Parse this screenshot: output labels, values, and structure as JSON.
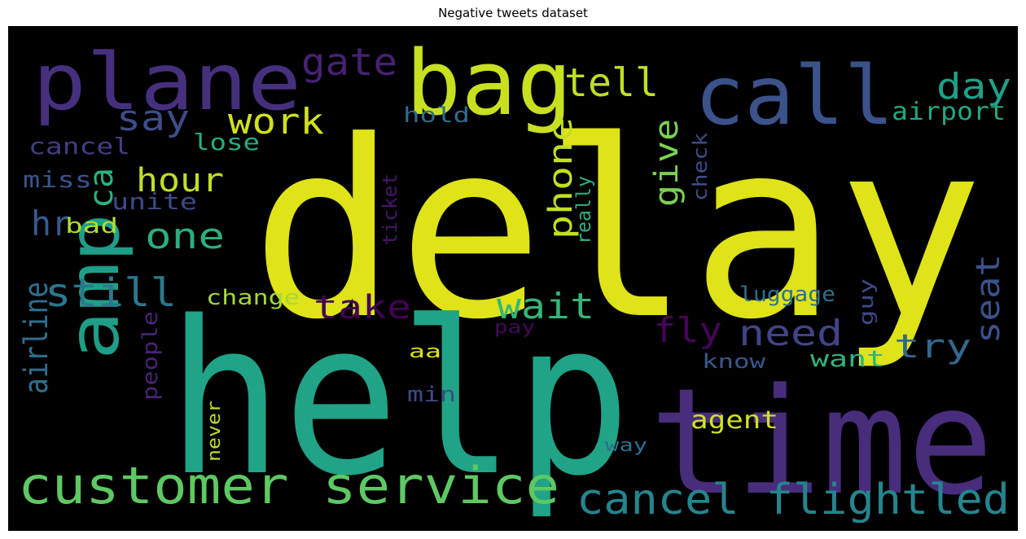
{
  "title": "Negative tweets dataset",
  "words": [
    {
      "text": "delay",
      "color": "#dfe318"
    },
    {
      "text": "help",
      "color": "#20a386"
    },
    {
      "text": "time",
      "color": "#472d7b"
    },
    {
      "text": "plane",
      "color": "#46307e"
    },
    {
      "text": "bag",
      "color": "#c8e020"
    },
    {
      "text": "call",
      "color": "#3b528b"
    },
    {
      "text": "amp",
      "color": "#1f9e89"
    },
    {
      "text": "customer service",
      "color": "#5ec962"
    },
    {
      "text": "cancel flightled",
      "color": "#25858e"
    },
    {
      "text": "still",
      "color": "#2a788e"
    },
    {
      "text": "gate",
      "color": "#482173"
    },
    {
      "text": "tell",
      "color": "#c0df25"
    },
    {
      "text": "day",
      "color": "#1fa088"
    },
    {
      "text": "work",
      "color": "#d0e11c"
    },
    {
      "text": "say",
      "color": "#3e4c8a"
    },
    {
      "text": "hour",
      "color": "#bddf26"
    },
    {
      "text": "one",
      "color": "#29af7f"
    },
    {
      "text": "hr",
      "color": "#365c8d"
    },
    {
      "text": "ca",
      "color": "#2db27d"
    },
    {
      "text": "airline",
      "color": "#2e6f8e"
    },
    {
      "text": "take",
      "color": "#440154"
    },
    {
      "text": "wait",
      "color": "#35b779"
    },
    {
      "text": "need",
      "color": "#414487"
    },
    {
      "text": "fly",
      "color": "#450559"
    },
    {
      "text": "seat",
      "color": "#3b528b"
    },
    {
      "text": "try",
      "color": "#31688e"
    },
    {
      "text": "give",
      "color": "#7ad151"
    },
    {
      "text": "phone",
      "color": "#c2df23"
    },
    {
      "text": "airport",
      "color": "#22a884"
    },
    {
      "text": "hold",
      "color": "#2f6c8e"
    },
    {
      "text": "cancel",
      "color": "#433e85"
    },
    {
      "text": "lose",
      "color": "#26ad81"
    },
    {
      "text": "miss",
      "color": "#3a548c"
    },
    {
      "text": "unite",
      "color": "#3e4a89"
    },
    {
      "text": "bad",
      "color": "#b5de2b"
    },
    {
      "text": "really",
      "color": "#2ab07f"
    },
    {
      "text": "check",
      "color": "#3d4d8a"
    },
    {
      "text": "ticket",
      "color": "#481668"
    },
    {
      "text": "change",
      "color": "#a2da37"
    },
    {
      "text": "luggage",
      "color": "#2c728e"
    },
    {
      "text": "guy",
      "color": "#3f4889"
    },
    {
      "text": "people",
      "color": "#482475"
    },
    {
      "text": "pay",
      "color": "#46085c"
    },
    {
      "text": "aa",
      "color": "#dde318"
    },
    {
      "text": "know",
      "color": "#38588c"
    },
    {
      "text": "want",
      "color": "#2fb47c"
    },
    {
      "text": "min",
      "color": "#3e4a89"
    },
    {
      "text": "agent",
      "color": "#d2e21b"
    },
    {
      "text": "never",
      "color": "#bade28"
    },
    {
      "text": "way",
      "color": "#2e6e8e"
    }
  ]
}
